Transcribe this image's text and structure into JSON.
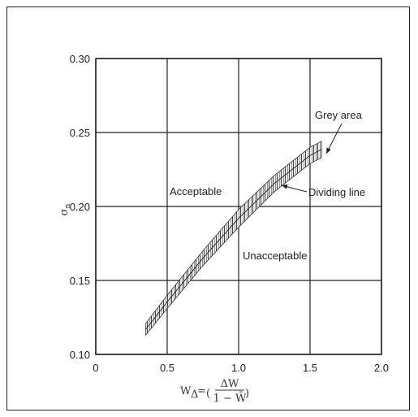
{
  "chart_data": {
    "type": "area",
    "xlim": [
      0,
      2.0
    ],
    "ylim": [
      0.1,
      0.3
    ],
    "x_ticks": [
      "0",
      "0.5",
      "1.0",
      "1.5",
      "2.0"
    ],
    "y_ticks": [
      "0.10",
      "0.15",
      "0.20",
      "0.25",
      "0.30"
    ],
    "grid": true,
    "ylabel": "σn",
    "xlabel": {
      "lhs": "W",
      "subscript": "Δ",
      "paren_num": "ΔW",
      "paren_den": "1 − W̄"
    },
    "band": {
      "x": [
        0.35,
        0.5,
        0.75,
        1.0,
        1.25,
        1.5,
        1.58
      ],
      "upper": [
        0.121,
        0.14,
        0.17,
        0.198,
        0.221,
        0.24,
        0.244
      ],
      "lower": [
        0.113,
        0.131,
        0.16,
        0.186,
        0.21,
        0.229,
        0.233
      ]
    },
    "dividing_line": {
      "x": [
        0.35,
        0.5,
        0.75,
        1.0,
        1.25,
        1.5,
        1.58
      ],
      "y": [
        0.117,
        0.1355,
        0.165,
        0.192,
        0.2155,
        0.2345,
        0.2385
      ]
    },
    "annotations": {
      "grey_area": "Grey area",
      "dividing_line": "Dividing line",
      "acceptable": "Acceptable",
      "unacceptable": "Unacceptable"
    }
  }
}
